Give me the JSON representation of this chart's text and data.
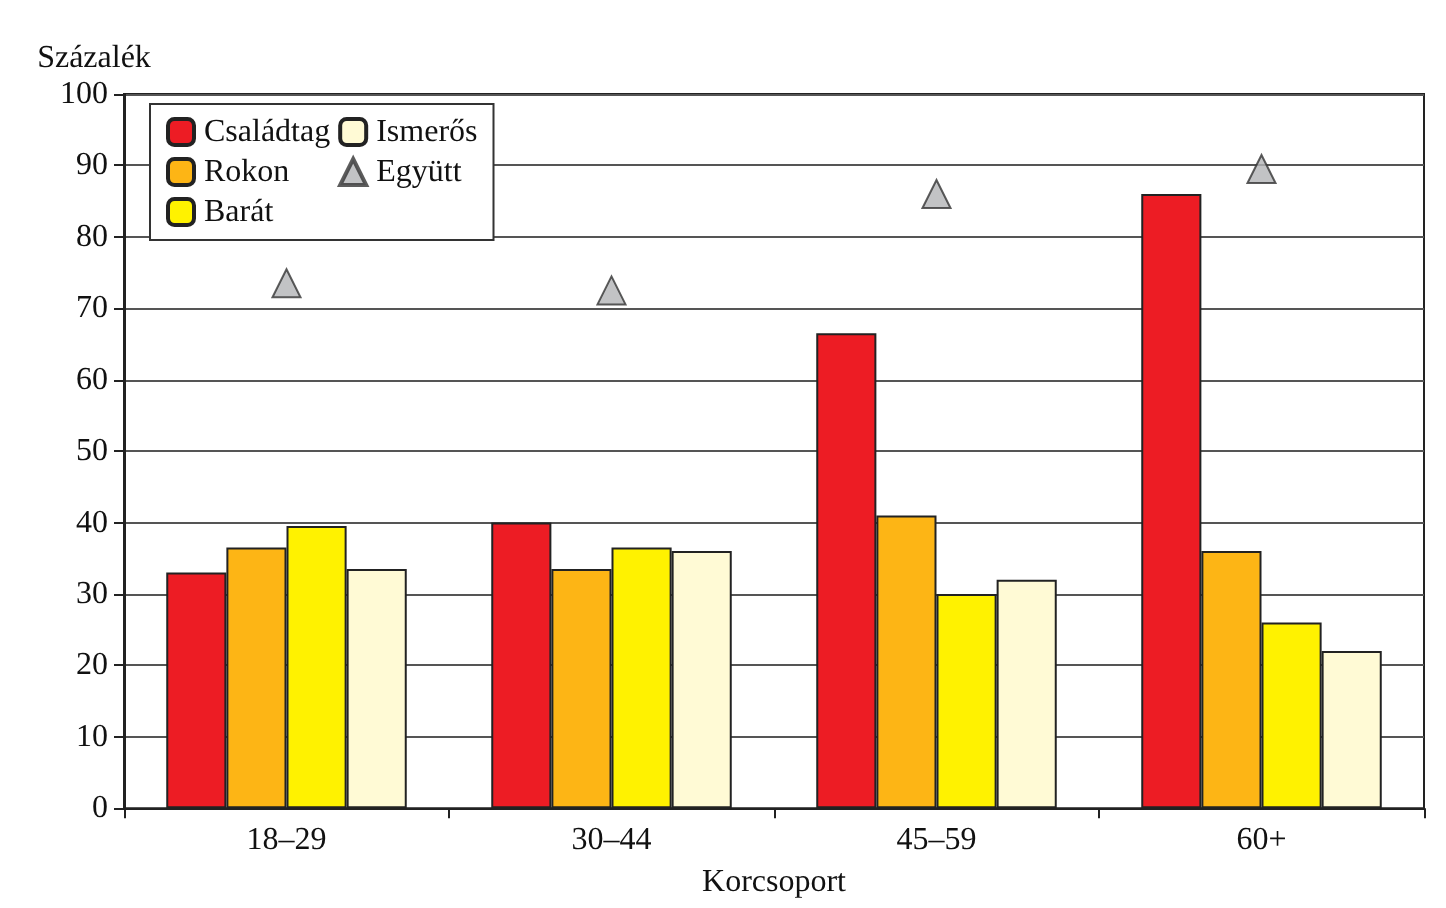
{
  "chart_data": {
    "type": "bar",
    "ylabel": "Százalék",
    "xlabel": "Korcsoport",
    "categories": [
      "18–29",
      "30–44",
      "45–59",
      "60+"
    ],
    "series": [
      {
        "name": "Családtag",
        "color": "#ed1c24",
        "values": [
          33,
          40,
          66.5,
          86
        ]
      },
      {
        "name": "Rokon",
        "color": "#fdb515",
        "values": [
          36.5,
          33.5,
          41,
          36
        ]
      },
      {
        "name": "Barát",
        "color": "#fff200",
        "values": [
          39.5,
          36.5,
          30,
          26
        ]
      },
      {
        "name": "Ismerős",
        "color": "#fffad5",
        "values": [
          33.5,
          36,
          32,
          22
        ]
      },
      {
        "name": "Együtt",
        "type": "scatter",
        "color": "#b3b4b6",
        "marker": "triangle",
        "x": [
          "18–29",
          "30–44",
          "45–59",
          "60+"
        ],
        "values": [
          73.5,
          72.5,
          86,
          89.5
        ]
      }
    ],
    "ylim": [
      0,
      100
    ],
    "yticks": [
      0,
      10,
      20,
      30,
      40,
      50,
      60,
      70,
      80,
      90,
      100
    ],
    "grid": "y",
    "legend": "top left"
  }
}
